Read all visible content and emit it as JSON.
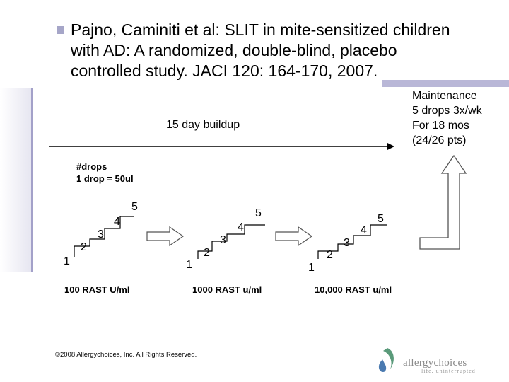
{
  "slide": {
    "title_lines": [
      "Pajno, Caminiti et al:  SLIT in mite-sensitized children",
      "with AD:  A randomized, double-blind, placebo",
      "controlled study.  JACI 120: 164-170, 2007."
    ],
    "buildup_label": "15 day buildup",
    "maintenance_lines": [
      "Maintenance",
      "5 drops 3x/wk",
      "For 18 mos",
      "(24/26 pts)"
    ],
    "drops_lines": [
      "#drops",
      "1 drop = 50ul"
    ],
    "staircases": [
      {
        "steps": [
          "1",
          "2",
          "3",
          "4",
          "5"
        ],
        "label": "100 RAST U/ml"
      },
      {
        "steps": [
          "1",
          "2",
          "3",
          "4",
          "5"
        ],
        "label": "1000 RAST u/ml"
      },
      {
        "steps": [
          "1",
          "2",
          "3",
          "4",
          "5"
        ],
        "label": "10,000 RAST u/ml"
      }
    ],
    "copyright": "©2008 Allergychoices, Inc. All Rights Reserved.",
    "logo": {
      "name": "allergychoices",
      "tagline": "life. uninterrupted"
    },
    "colors": {
      "accent": "#b9b7d7",
      "bullet": "#a6a6c8",
      "logo_green": "#5a9a7a",
      "logo_blue": "#4a7ab0"
    }
  }
}
